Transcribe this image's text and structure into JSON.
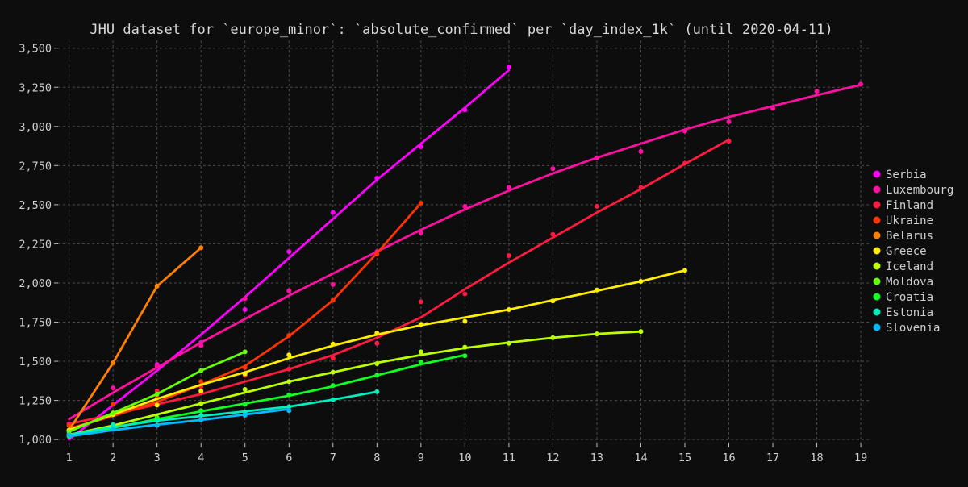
{
  "chart_data": {
    "type": "line",
    "title": "JHU dataset for `europe_minor`: `absolute_confirmed` per `day_index_1k` (until 2020-04-11)",
    "xlabel": "",
    "ylabel": "",
    "x_ticks": [
      1,
      2,
      3,
      4,
      5,
      6,
      7,
      8,
      9,
      10,
      11,
      12,
      13,
      14,
      15,
      16,
      17,
      18,
      19
    ],
    "y_ticks": [
      1000,
      1250,
      1500,
      1750,
      2000,
      2250,
      2500,
      2750,
      3000,
      3250,
      3500
    ],
    "y_tick_labels": [
      "1,000",
      "1,250",
      "1,500",
      "1,750",
      "2,000",
      "2,250",
      "2,500",
      "2,750",
      "3,000",
      "3,250",
      "3,500"
    ],
    "xlim": [
      0.75,
      19.2
    ],
    "ylim": [
      975,
      3550
    ],
    "grid": true,
    "legend_position": "right",
    "background": "#0d0d0d",
    "series": [
      {
        "name": "Serbia",
        "color": "#ff00ff",
        "x": [
          1,
          2,
          3,
          4,
          5,
          6,
          7,
          8,
          9,
          10,
          11
        ],
        "y": [
          1060,
          1170,
          1480,
          1620,
          1830,
          2200,
          2450,
          2670,
          2870,
          3105,
          3380
        ],
        "fit": [
          1000,
          1220,
          1440,
          1670,
          1910,
          2160,
          2410,
          2660,
          2890,
          3120,
          3360
        ]
      },
      {
        "name": "Luxembourg",
        "color": "#ff10a0",
        "x": [
          1,
          2,
          3,
          4,
          5,
          6,
          7,
          8,
          9,
          10,
          11,
          12,
          13,
          14,
          15,
          16,
          17,
          18,
          19
        ],
        "y": [
          1100,
          1330,
          1470,
          1600,
          1900,
          1950,
          1990,
          2200,
          2320,
          2490,
          2610,
          2730,
          2800,
          2840,
          2970,
          3030,
          3115,
          3225,
          3270
        ],
        "fit": [
          1130,
          1300,
          1460,
          1620,
          1770,
          1920,
          2060,
          2200,
          2340,
          2470,
          2590,
          2700,
          2800,
          2890,
          2980,
          3060,
          3130,
          3200,
          3265
        ]
      },
      {
        "name": "Finland",
        "color": "#ff1a40",
        "x": [
          1,
          2,
          3,
          4,
          5,
          6,
          7,
          8,
          9,
          10,
          11,
          12,
          13,
          14,
          15,
          16
        ],
        "y": [
          1040,
          1170,
          1310,
          1340,
          1410,
          1450,
          1520,
          1615,
          1880,
          1930,
          2175,
          2310,
          2490,
          2610,
          2765,
          2905
        ],
        "fit": [
          1100,
          1160,
          1225,
          1290,
          1370,
          1450,
          1540,
          1650,
          1780,
          1960,
          2130,
          2290,
          2450,
          2600,
          2760,
          2915
        ]
      },
      {
        "name": "Ukraine",
        "color": "#ff3300",
        "x": [
          1,
          2,
          3,
          4,
          5,
          6,
          7,
          8,
          9
        ],
        "y": [
          1090,
          1225,
          1265,
          1370,
          1460,
          1665,
          1890,
          2185,
          2510
        ],
        "fit": [
          1070,
          1150,
          1240,
          1350,
          1470,
          1660,
          1890,
          2190,
          2510
        ]
      },
      {
        "name": "Belarus",
        "color": "#ff8000",
        "x": [
          1,
          2,
          3,
          4
        ],
        "y": [
          1060,
          1490,
          1980,
          2225
        ],
        "fit": [
          1060,
          1490,
          1980,
          2225
        ]
      },
      {
        "name": "Greece",
        "color": "#ffee00",
        "x": [
          1,
          2,
          3,
          4,
          5,
          6,
          7,
          8,
          9,
          10,
          11,
          12,
          13,
          14,
          15
        ],
        "y": [
          1060,
          1160,
          1220,
          1310,
          1420,
          1540,
          1610,
          1680,
          1735,
          1755,
          1830,
          1885,
          1955,
          2010,
          2080
        ],
        "fit": [
          1060,
          1160,
          1260,
          1350,
          1430,
          1520,
          1600,
          1670,
          1730,
          1780,
          1830,
          1890,
          1950,
          2010,
          2080
        ]
      },
      {
        "name": "Iceland",
        "color": "#bbff00",
        "x": [
          1,
          2,
          3,
          4,
          5,
          6,
          7,
          8,
          9,
          10,
          11,
          12,
          13,
          14
        ],
        "y": [
          1030,
          1080,
          1140,
          1230,
          1320,
          1370,
          1430,
          1485,
          1560,
          1590,
          1615,
          1650,
          1675,
          1690
        ],
        "fit": [
          1030,
          1090,
          1160,
          1230,
          1300,
          1370,
          1430,
          1490,
          1540,
          1585,
          1620,
          1650,
          1675,
          1690
        ]
      },
      {
        "name": "Moldova",
        "color": "#66ff00",
        "x": [
          1,
          2,
          3,
          4,
          5
        ],
        "y": [
          1050,
          1170,
          1290,
          1440,
          1560
        ],
        "fit": [
          1050,
          1170,
          1290,
          1440,
          1560
        ]
      },
      {
        "name": "Croatia",
        "color": "#11ff22",
        "x": [
          1,
          2,
          3,
          4,
          5,
          6,
          7,
          8,
          9,
          10
        ],
        "y": [
          1020,
          1085,
          1135,
          1185,
          1225,
          1285,
          1345,
          1410,
          1495,
          1535
        ],
        "fit": [
          1020,
          1075,
          1130,
          1180,
          1230,
          1280,
          1340,
          1410,
          1480,
          1540
        ]
      },
      {
        "name": "Estonia",
        "color": "#00eebb",
        "x": [
          1,
          2,
          3,
          4,
          5,
          6,
          7,
          8
        ],
        "y": [
          1030,
          1095,
          1120,
          1155,
          1175,
          1210,
          1255,
          1305
        ],
        "fit": [
          1030,
          1080,
          1120,
          1150,
          1180,
          1210,
          1255,
          1305
        ]
      },
      {
        "name": "Slovenia",
        "color": "#00bbff",
        "x": [
          1,
          2,
          3,
          4,
          5,
          6
        ],
        "y": [
          1030,
          1065,
          1090,
          1125,
          1155,
          1185
        ],
        "fit": [
          1020,
          1060,
          1095,
          1125,
          1160,
          1195
        ]
      }
    ]
  }
}
